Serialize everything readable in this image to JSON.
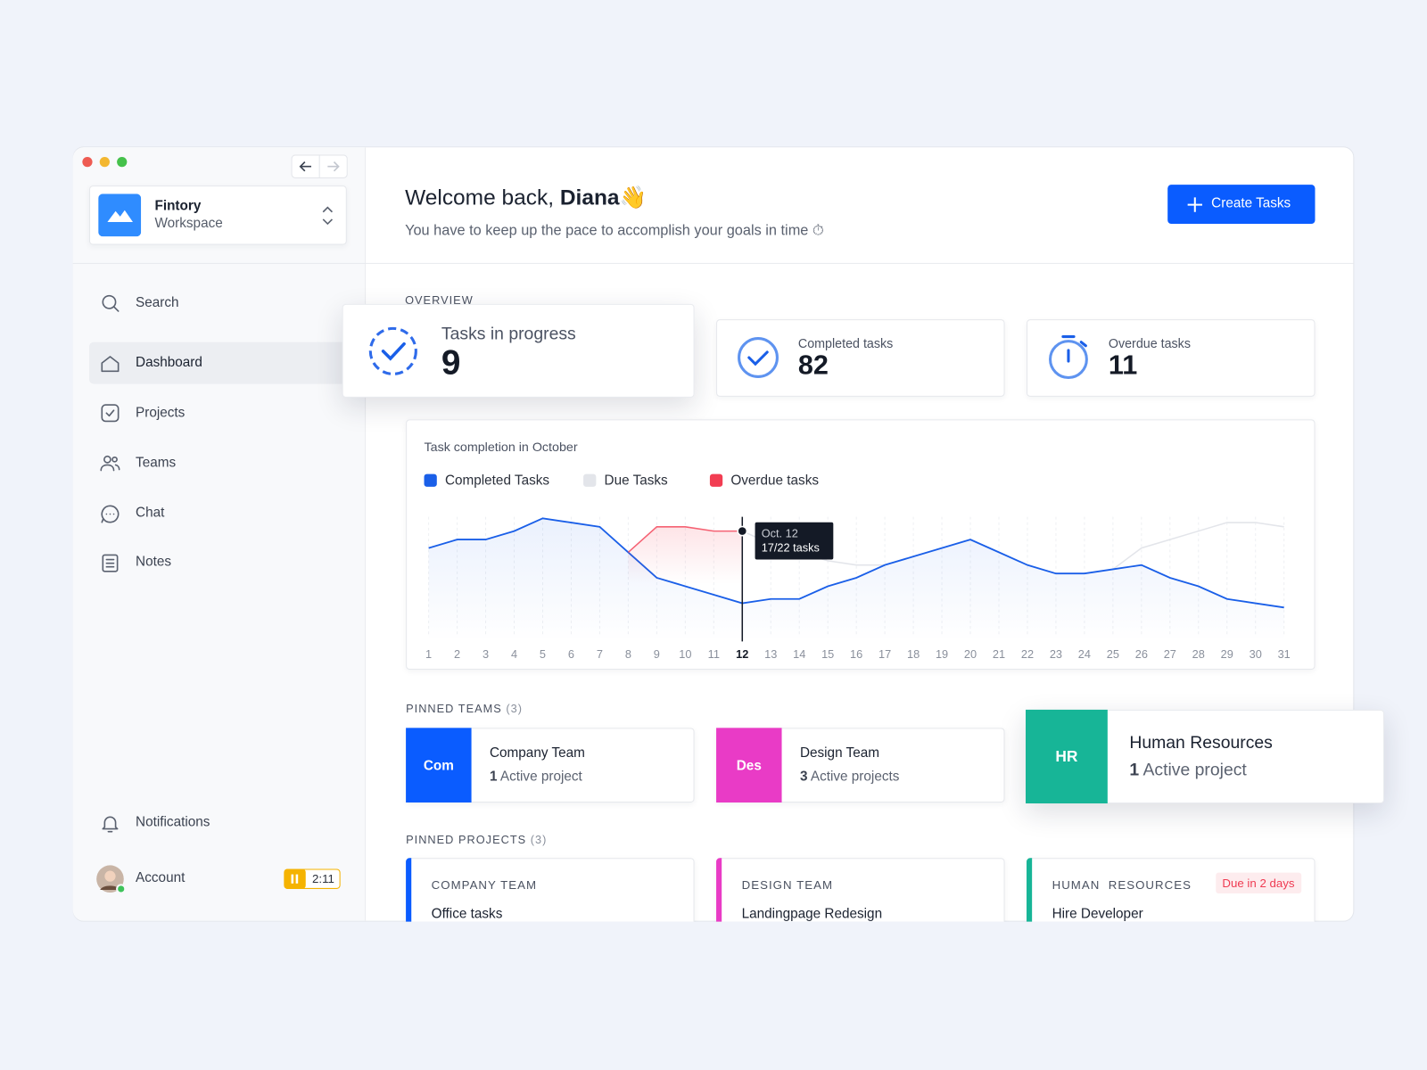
{
  "sidebar": {
    "workspace": {
      "name": "Fintory",
      "subtitle": "Workspace"
    },
    "search": "Search",
    "nav": [
      "Dashboard",
      "Projects",
      "Teams",
      "Chat",
      "Notes"
    ],
    "notifications": "Notifications",
    "account": "Account",
    "timer": "2:11"
  },
  "header": {
    "greeting": "Welcome back, ",
    "name": "Diana",
    "emoji": "👋",
    "subtitle": "You have to keep up the pace to accomplish your goals in time ⏱",
    "button": "Create Tasks"
  },
  "overview": {
    "label": "OVERVIEW",
    "stats": [
      {
        "label": "Tasks in progress",
        "value": 9
      },
      {
        "label": "Completed tasks",
        "value": 82
      },
      {
        "label": "Overdue tasks",
        "value": 11
      }
    ]
  },
  "chart_data": {
    "type": "line",
    "title": "Task completion in October",
    "categories": [
      "1",
      "2",
      "3",
      "4",
      "5",
      "6",
      "7",
      "8",
      "9",
      "10",
      "11",
      "12",
      "13",
      "14",
      "15",
      "16",
      "17",
      "18",
      "19",
      "20",
      "21",
      "22",
      "23",
      "24",
      "25",
      "26",
      "27",
      "28",
      "29",
      "30",
      "31"
    ],
    "series": [
      {
        "name": "Completed Tasks",
        "color": "#1a5fe8",
        "fill": true,
        "values": [
          22,
          24,
          24,
          26,
          29,
          28,
          27,
          21,
          15,
          13,
          11,
          9,
          10,
          10,
          13,
          15,
          18,
          20,
          22,
          24,
          21,
          18,
          16,
          16,
          17,
          18,
          15,
          13,
          10,
          9,
          8
        ]
      },
      {
        "name": "Due Tasks",
        "color": "#e3e5ea",
        "fill": false,
        "values": [
          null,
          null,
          null,
          null,
          null,
          null,
          null,
          null,
          null,
          null,
          null,
          26,
          23,
          21,
          19,
          18,
          18,
          null,
          null,
          null,
          null,
          null,
          null,
          null,
          17,
          22,
          24,
          26,
          28,
          28,
          27
        ]
      },
      {
        "name": "Overdue tasks",
        "color": "#f23d52",
        "fill": true,
        "values": [
          null,
          null,
          null,
          null,
          null,
          null,
          null,
          21,
          27,
          27,
          26,
          26,
          null,
          null,
          null,
          null,
          null,
          null,
          null,
          null,
          null,
          null,
          null,
          null,
          null,
          null,
          null,
          null,
          null,
          null,
          null
        ]
      }
    ],
    "ylim": [
      0,
      30
    ],
    "highlight": "12",
    "tooltip": {
      "title": "Oct. 12",
      "text": "17/22 tasks"
    }
  },
  "pinned_teams": {
    "label": "PINNED TEAMS",
    "count": "(3)",
    "teams": [
      {
        "abbr": "Com",
        "name": "Company Team",
        "projects": 1,
        "projects_label": "Active project",
        "color": "#0a5cff"
      },
      {
        "abbr": "Des",
        "name": "Design Team",
        "projects": 3,
        "projects_label": "Active projects",
        "color": "#e93bc6"
      },
      {
        "abbr": "HR",
        "name": "Human Resources",
        "projects": 1,
        "projects_label": "Active project",
        "color": "#17b597"
      }
    ]
  },
  "pinned_projects": {
    "label": "PINNED PROJECTS",
    "count": "(3)",
    "projects": [
      {
        "team": "COMPANY TEAM",
        "title": "Office tasks",
        "color": "#0a5cff"
      },
      {
        "team": "DESIGN TEAM",
        "title": "Landingpage Redesign",
        "color": "#e93bc6"
      },
      {
        "team": "HUMAN  RESOURCES",
        "title": "Hire Developer",
        "color": "#17b597",
        "badge": "Due in 2 days"
      }
    ]
  }
}
